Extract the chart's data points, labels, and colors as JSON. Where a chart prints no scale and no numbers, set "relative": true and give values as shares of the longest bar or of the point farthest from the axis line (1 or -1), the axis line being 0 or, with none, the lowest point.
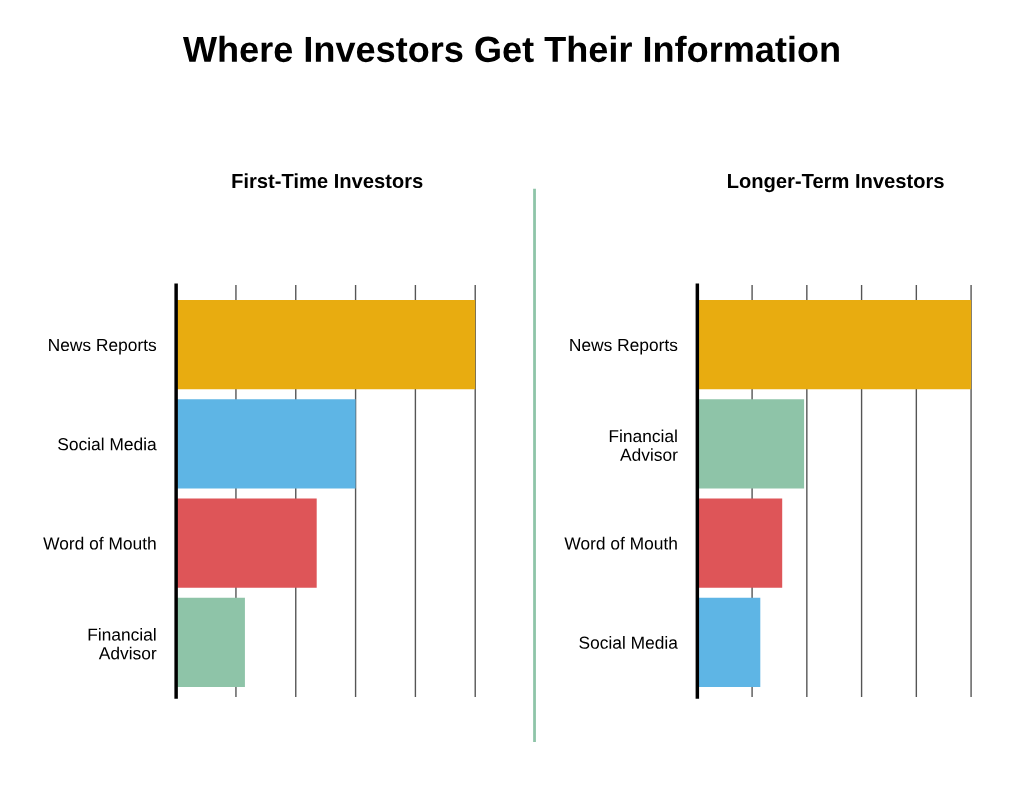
{
  "chart_data": [
    {
      "type": "bar",
      "orientation": "horizontal",
      "relative": true,
      "grid": "x",
      "title": "Where Investors Get Their Information",
      "subtitle": "First-Time Investors",
      "categories": [
        "News Reports",
        "Social Media",
        "Word of Mouth",
        "Financial\nAdvisor"
      ],
      "values": [
        1,
        0.6,
        0.47,
        0.23
      ],
      "colors": [
        "#e8ac10",
        "#5eb5e5",
        "#de5558",
        "#8ec4a8"
      ]
    },
    {
      "type": "bar",
      "orientation": "horizontal",
      "relative": true,
      "grid": "x",
      "subtitle": "Longer-Term Investors",
      "categories": [
        "News Reports",
        "Financial\nAdvisor",
        "Word of Mouth",
        "Social Media"
      ],
      "values": [
        1,
        0.39,
        0.31,
        0.23
      ],
      "colors": [
        "#e8ac10",
        "#8ec4a8",
        "#de5558",
        "#5eb5e5"
      ]
    }
  ]
}
